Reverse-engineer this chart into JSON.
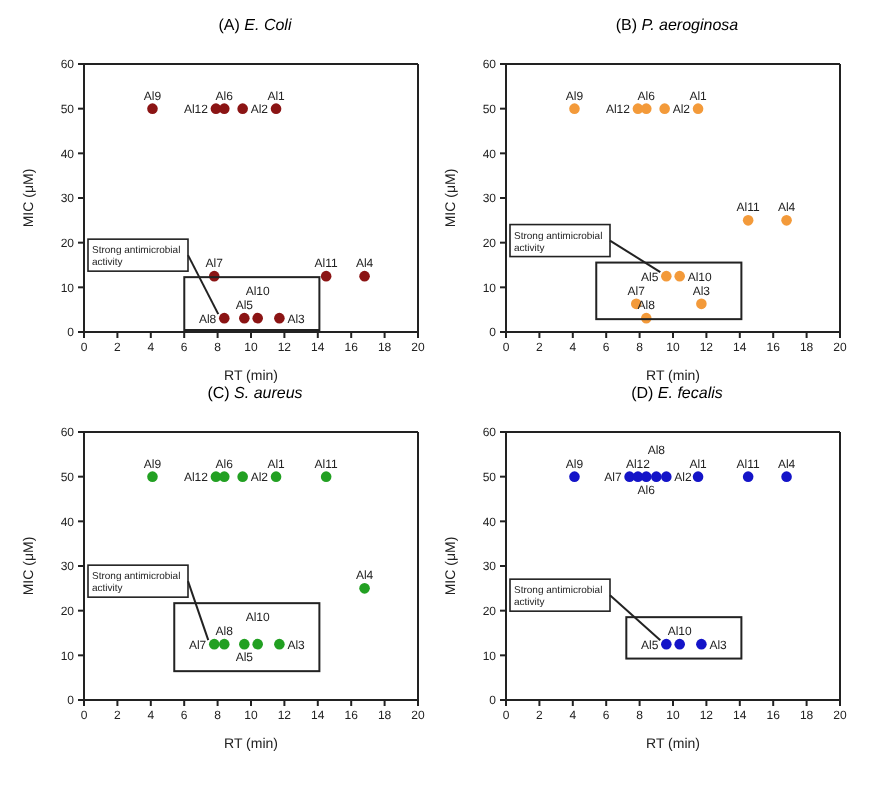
{
  "chart_data": [
    {
      "type": "scatter",
      "title": "(A) E. Coli",
      "xlabel": "RT (min)",
      "ylabel": "MIC (μM)",
      "xlim": [
        0,
        20
      ],
      "xticks": [
        0,
        2,
        4,
        6,
        8,
        10,
        12,
        14,
        16,
        18,
        20
      ],
      "ylim": [
        0,
        60
      ],
      "yticks": [
        0,
        10,
        20,
        30,
        40,
        50,
        60
      ],
      "marker": "circle",
      "annotations": [
        {
          "text": "Strong antimicrobial activity",
          "x": 8.4,
          "y": 3.1
        }
      ],
      "series": [
        {
          "name": "Al9",
          "color": "#8b1414",
          "x": [
            4.1
          ],
          "values": [
            50
          ]
        },
        {
          "name": "Al12",
          "color": "#8b1414",
          "x": [
            7.9
          ],
          "values": [
            50
          ]
        },
        {
          "name": "Al6",
          "color": "#8b1414",
          "x": [
            8.4
          ],
          "values": [
            50
          ]
        },
        {
          "name": "Al2",
          "color": "#8b1414",
          "x": [
            9.5
          ],
          "values": [
            50
          ]
        },
        {
          "name": "Al1",
          "color": "#8b1414",
          "x": [
            11.5
          ],
          "values": [
            50
          ]
        },
        {
          "name": "Al7",
          "color": "#8b1414",
          "x": [
            7.8
          ],
          "values": [
            12.5
          ]
        },
        {
          "name": "Al11",
          "color": "#8b1414",
          "x": [
            14.5
          ],
          "values": [
            12.5
          ]
        },
        {
          "name": "Al4",
          "color": "#8b1414",
          "x": [
            16.8
          ],
          "values": [
            12.5
          ]
        },
        {
          "name": "Al8",
          "color": "#8b1414",
          "x": [
            8.4
          ],
          "values": [
            3.1
          ]
        },
        {
          "name": "Al5",
          "color": "#8b1414",
          "x": [
            9.6
          ],
          "values": [
            3.1
          ]
        },
        {
          "name": "Al10",
          "color": "#8b1414",
          "x": [
            10.4
          ],
          "values": [
            3.1
          ]
        },
        {
          "name": "Al3",
          "color": "#8b1414",
          "x": [
            11.7
          ],
          "values": [
            3.1
          ]
        }
      ]
    },
    {
      "type": "scatter",
      "title": "(B) P. aeroginosa",
      "xlabel": "RT (min)",
      "ylabel": "MIC (μM)",
      "xlim": [
        0,
        20
      ],
      "xticks": [
        0,
        2,
        4,
        6,
        8,
        10,
        12,
        14,
        16,
        18,
        20
      ],
      "ylim": [
        0,
        60
      ],
      "yticks": [
        0,
        10,
        20,
        30,
        40,
        50,
        60
      ],
      "marker": "circle",
      "annotations": [
        {
          "text": "Strong antimicrobial activity",
          "x": 9.6,
          "y": 12.5
        }
      ],
      "series": [
        {
          "name": "Al9",
          "color": "#f39a3a",
          "x": [
            4.1
          ],
          "values": [
            50
          ]
        },
        {
          "name": "Al12",
          "color": "#f39a3a",
          "x": [
            7.9
          ],
          "values": [
            50
          ]
        },
        {
          "name": "Al6",
          "color": "#f39a3a",
          "x": [
            8.4
          ],
          "values": [
            50
          ]
        },
        {
          "name": "Al2",
          "color": "#f39a3a",
          "x": [
            9.5
          ],
          "values": [
            50
          ]
        },
        {
          "name": "Al1",
          "color": "#f39a3a",
          "x": [
            11.5
          ],
          "values": [
            50
          ]
        },
        {
          "name": "Al11",
          "color": "#f39a3a",
          "x": [
            14.5
          ],
          "values": [
            25
          ]
        },
        {
          "name": "Al4",
          "color": "#f39a3a",
          "x": [
            16.8
          ],
          "values": [
            25
          ]
        },
        {
          "name": "Al5",
          "color": "#f39a3a",
          "x": [
            9.6
          ],
          "values": [
            12.5
          ]
        },
        {
          "name": "Al10",
          "color": "#f39a3a",
          "x": [
            10.4
          ],
          "values": [
            12.5
          ]
        },
        {
          "name": "Al7",
          "color": "#f39a3a",
          "x": [
            7.8
          ],
          "values": [
            6.3
          ]
        },
        {
          "name": "Al3",
          "color": "#f39a3a",
          "x": [
            11.7
          ],
          "values": [
            6.3
          ]
        },
        {
          "name": "Al8",
          "color": "#f39a3a",
          "x": [
            8.4
          ],
          "values": [
            3.1
          ]
        }
      ]
    },
    {
      "type": "scatter",
      "title": "(C) S. aureus",
      "xlabel": "RT (min)",
      "ylabel": "MIC (μM)",
      "xlim": [
        0,
        20
      ],
      "xticks": [
        0,
        2,
        4,
        6,
        8,
        10,
        12,
        14,
        16,
        18,
        20
      ],
      "ylim": [
        0,
        60
      ],
      "yticks": [
        0,
        10,
        20,
        30,
        40,
        50,
        60
      ],
      "marker": "circle",
      "annotations": [
        {
          "text": "Strong antimicrobial activity",
          "x": 7.8,
          "y": 12.5
        }
      ],
      "series": [
        {
          "name": "Al9",
          "color": "#22a022",
          "x": [
            4.1
          ],
          "values": [
            50
          ]
        },
        {
          "name": "Al12",
          "color": "#22a022",
          "x": [
            7.9
          ],
          "values": [
            50
          ]
        },
        {
          "name": "Al6",
          "color": "#22a022",
          "x": [
            8.4
          ],
          "values": [
            50
          ]
        },
        {
          "name": "Al2",
          "color": "#22a022",
          "x": [
            9.5
          ],
          "values": [
            50
          ]
        },
        {
          "name": "Al1",
          "color": "#22a022",
          "x": [
            11.5
          ],
          "values": [
            50
          ]
        },
        {
          "name": "Al11",
          "color": "#22a022",
          "x": [
            14.5
          ],
          "values": [
            50
          ]
        },
        {
          "name": "Al4",
          "color": "#22a022",
          "x": [
            16.8
          ],
          "values": [
            25
          ]
        },
        {
          "name": "Al7",
          "color": "#22a022",
          "x": [
            7.8
          ],
          "values": [
            12.5
          ]
        },
        {
          "name": "Al8",
          "color": "#22a022",
          "x": [
            8.4
          ],
          "values": [
            12.5
          ]
        },
        {
          "name": "Al5",
          "color": "#22a022",
          "x": [
            9.6
          ],
          "values": [
            12.5
          ]
        },
        {
          "name": "Al10",
          "color": "#22a022",
          "x": [
            10.4
          ],
          "values": [
            12.5
          ]
        },
        {
          "name": "Al3",
          "color": "#22a022",
          "x": [
            11.7
          ],
          "values": [
            12.5
          ]
        }
      ]
    },
    {
      "type": "scatter",
      "title": "(D) E. fecalis",
      "xlabel": "RT (min)",
      "ylabel": "MIC (μM)",
      "xlim": [
        0,
        20
      ],
      "xticks": [
        0,
        2,
        4,
        6,
        8,
        10,
        12,
        14,
        16,
        18,
        20
      ],
      "ylim": [
        0,
        60
      ],
      "yticks": [
        0,
        10,
        20,
        30,
        40,
        50,
        60
      ],
      "marker": "circle",
      "annotations": [
        {
          "text": "Strong antimicrobial activity",
          "x": 9.6,
          "y": 12.5
        }
      ],
      "series": [
        {
          "name": "Al9",
          "color": "#1414c8",
          "x": [
            4.1
          ],
          "values": [
            50
          ]
        },
        {
          "name": "Al7",
          "color": "#1414c8",
          "x": [
            7.4
          ],
          "values": [
            50
          ]
        },
        {
          "name": "Al12",
          "color": "#1414c8",
          "x": [
            7.9
          ],
          "values": [
            50
          ]
        },
        {
          "name": "Al6",
          "color": "#1414c8",
          "x": [
            8.4
          ],
          "values": [
            50
          ]
        },
        {
          "name": "Al8",
          "color": "#1414c8",
          "x": [
            9.0
          ],
          "values": [
            50
          ]
        },
        {
          "name": "Al2",
          "color": "#1414c8",
          "x": [
            9.6
          ],
          "values": [
            50
          ]
        },
        {
          "name": "Al1",
          "color": "#1414c8",
          "x": [
            11.5
          ],
          "values": [
            50
          ]
        },
        {
          "name": "Al11",
          "color": "#1414c8",
          "x": [
            14.5
          ],
          "values": [
            50
          ]
        },
        {
          "name": "Al4",
          "color": "#1414c8",
          "x": [
            16.8
          ],
          "values": [
            50
          ]
        },
        {
          "name": "Al5",
          "color": "#1414c8",
          "x": [
            9.6
          ],
          "values": [
            12.5
          ]
        },
        {
          "name": "Al10",
          "color": "#1414c8",
          "x": [
            10.4
          ],
          "values": [
            12.5
          ]
        },
        {
          "name": "Al3",
          "color": "#1414c8",
          "x": [
            11.7
          ],
          "values": [
            12.5
          ]
        }
      ]
    }
  ]
}
